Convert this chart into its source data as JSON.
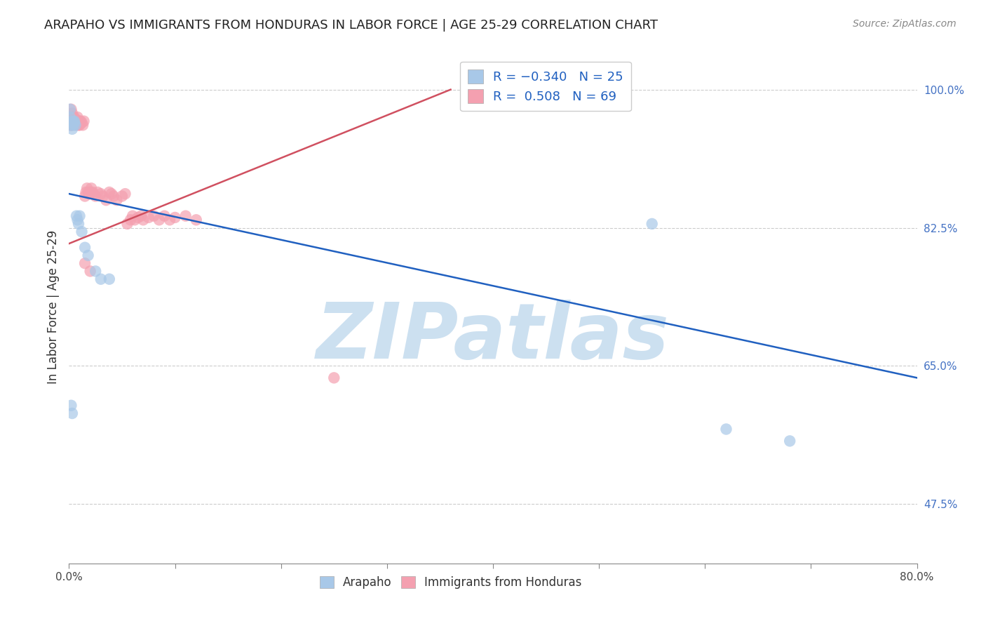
{
  "title": "ARAPAHO VS IMMIGRANTS FROM HONDURAS IN LABOR FORCE | AGE 25-29 CORRELATION CHART",
  "source": "Source: ZipAtlas.com",
  "ylabel": "In Labor Force | Age 25-29",
  "xlim": [
    0.0,
    0.8
  ],
  "ylim": [
    0.4,
    1.05
  ],
  "xticks": [
    0.0,
    0.1,
    0.2,
    0.3,
    0.4,
    0.5,
    0.6,
    0.7,
    0.8
  ],
  "xticklabels": [
    "0.0%",
    "",
    "",
    "",
    "",
    "",
    "",
    "",
    "80.0%"
  ],
  "yticks": [
    0.475,
    0.65,
    0.825,
    1.0
  ],
  "yticklabels": [
    "47.5%",
    "65.0%",
    "82.5%",
    "100.0%"
  ],
  "arapaho_color": "#a8c8e8",
  "honduras_color": "#f4a0b0",
  "arapaho_line_color": "#2060c0",
  "honduras_line_color": "#d05060",
  "watermark": "ZIPatlas",
  "watermark_color": "#cce0f0",
  "background_color": "#ffffff",
  "arapaho_x": [
    0.001,
    0.001,
    0.002,
    0.002,
    0.003,
    0.004,
    0.004,
    0.005,
    0.005,
    0.006,
    0.007,
    0.008,
    0.009,
    0.01,
    0.012,
    0.015,
    0.018,
    0.025,
    0.03,
    0.038,
    0.002,
    0.003,
    0.55,
    0.62,
    0.68
  ],
  "arapaho_y": [
    0.975,
    0.965,
    0.96,
    0.955,
    0.95,
    0.96,
    0.955,
    0.96,
    0.958,
    0.955,
    0.84,
    0.835,
    0.83,
    0.84,
    0.82,
    0.8,
    0.79,
    0.77,
    0.76,
    0.76,
    0.6,
    0.59,
    0.83,
    0.57,
    0.555
  ],
  "honduras_x": [
    0.001,
    0.001,
    0.001,
    0.002,
    0.002,
    0.002,
    0.002,
    0.003,
    0.003,
    0.003,
    0.003,
    0.004,
    0.004,
    0.004,
    0.005,
    0.005,
    0.005,
    0.006,
    0.006,
    0.007,
    0.007,
    0.008,
    0.008,
    0.009,
    0.009,
    0.01,
    0.01,
    0.011,
    0.012,
    0.013,
    0.014,
    0.015,
    0.016,
    0.017,
    0.018,
    0.019,
    0.02,
    0.021,
    0.022,
    0.023,
    0.025,
    0.027,
    0.03,
    0.032,
    0.035,
    0.038,
    0.04,
    0.042,
    0.045,
    0.05,
    0.053,
    0.055,
    0.058,
    0.06,
    0.062,
    0.065,
    0.068,
    0.07,
    0.075,
    0.08,
    0.085,
    0.09,
    0.095,
    0.1,
    0.11,
    0.12,
    0.015,
    0.02,
    0.25
  ],
  "honduras_y": [
    0.96,
    0.955,
    0.965,
    0.958,
    0.96,
    0.955,
    0.975,
    0.97,
    0.96,
    0.955,
    0.965,
    0.96,
    0.958,
    0.965,
    0.96,
    0.958,
    0.965,
    0.958,
    0.96,
    0.955,
    0.96,
    0.958,
    0.965,
    0.96,
    0.955,
    0.96,
    0.955,
    0.96,
    0.958,
    0.955,
    0.96,
    0.865,
    0.87,
    0.875,
    0.87,
    0.868,
    0.87,
    0.875,
    0.87,
    0.868,
    0.865,
    0.87,
    0.868,
    0.865,
    0.86,
    0.87,
    0.868,
    0.865,
    0.86,
    0.865,
    0.868,
    0.83,
    0.835,
    0.84,
    0.835,
    0.838,
    0.84,
    0.835,
    0.838,
    0.84,
    0.835,
    0.84,
    0.835,
    0.838,
    0.84,
    0.835,
    0.78,
    0.77,
    0.635
  ],
  "blue_line_x": [
    0.0,
    0.8
  ],
  "blue_line_y": [
    0.868,
    0.635
  ],
  "pink_line_x": [
    0.0,
    0.36
  ],
  "pink_line_y": [
    0.805,
    1.0
  ]
}
